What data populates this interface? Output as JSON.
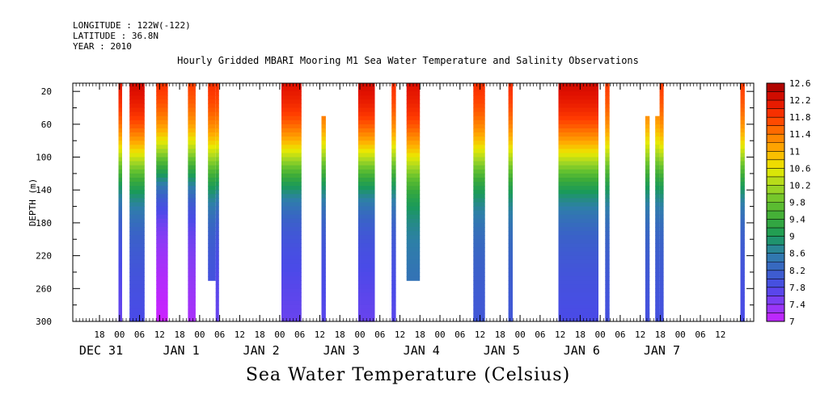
{
  "header": {
    "longitude": "LONGITUDE : 122W(-122)",
    "latitude": "LATITUDE : 36.8N",
    "year": "YEAR : 2010"
  },
  "caption": "Sea Water Temperature (Celsius)",
  "chart_data": {
    "type": "heatmap",
    "title": "Hourly Gridded MBARI Mooring M1 Sea Water Temperature and Salinity Observations",
    "xlabel": "",
    "ylabel": "DEPTH (m)",
    "ylim": [
      300,
      10
    ],
    "xlim_hours_from_dec31_00": [
      -14,
      190
    ],
    "y_ticks": [
      20,
      60,
      100,
      140,
      180,
      220,
      260,
      300
    ],
    "x_hour_ticks": [
      "18",
      "00",
      "06",
      "12",
      "18",
      "00",
      "06",
      "12",
      "18",
      "00",
      "06",
      "12",
      "18",
      "00",
      "06",
      "12",
      "18",
      "00",
      "06",
      "12",
      "18",
      "00",
      "06",
      "12",
      "18",
      "00",
      "06",
      "12",
      "18",
      "00",
      "06",
      "12"
    ],
    "x_day_labels": [
      {
        "text": "DEC 31",
        "hour": -6
      },
      {
        "text": "JAN  1",
        "hour": 18
      },
      {
        "text": "JAN  2",
        "hour": 42
      },
      {
        "text": "JAN  3",
        "hour": 66
      },
      {
        "text": "JAN  4",
        "hour": 90
      },
      {
        "text": "JAN  5",
        "hour": 114
      },
      {
        "text": "JAN  6",
        "hour": 138
      },
      {
        "text": "JAN  7",
        "hour": 162
      }
    ],
    "colorbar": {
      "min": 7,
      "max": 12.6,
      "step": 0.2,
      "labels": [
        "12.6",
        "12.2",
        "11.8",
        "11.4",
        "11",
        "10.6",
        "10.2",
        "9.8",
        "9.4",
        "9",
        "8.6",
        "8.2",
        "7.8",
        "7.4",
        "7"
      ]
    },
    "observation_segments": [
      {
        "start_h": -0.3,
        "end_h": 0.8,
        "top_m": 20,
        "bottom_m": 300,
        "surface_temp": 12.2,
        "bottom_temp": 7.6
      },
      {
        "start_h": 3,
        "end_h": 7.5,
        "top_m": 20,
        "bottom_m": 300,
        "surface_temp": 12.4,
        "bottom_temp": 7.8
      },
      {
        "start_h": 11,
        "end_h": 14.5,
        "top_m": 20,
        "bottom_m": 300,
        "surface_temp": 12.0,
        "bottom_temp": 7.0
      },
      {
        "start_h": 20.5,
        "end_h": 22.8,
        "top_m": 20,
        "bottom_m": 300,
        "surface_temp": 11.9,
        "bottom_temp": 7.2
      },
      {
        "start_h": 26.5,
        "end_h": 28.8,
        "top_m": 20,
        "bottom_m": 250,
        "surface_temp": 12.0,
        "bottom_temp": 7.8
      },
      {
        "start_h": 28.8,
        "end_h": 29.8,
        "top_m": 20,
        "bottom_m": 300,
        "surface_temp": 12.0,
        "bottom_temp": 7.6
      },
      {
        "start_h": 48.5,
        "end_h": 54.5,
        "top_m": 20,
        "bottom_m": 300,
        "surface_temp": 12.3,
        "bottom_temp": 7.6
      },
      {
        "start_h": 60.5,
        "end_h": 61.8,
        "top_m": 60,
        "bottom_m": 300,
        "surface_temp": 11.9,
        "bottom_temp": 7.7
      },
      {
        "start_h": 71.5,
        "end_h": 76.5,
        "top_m": 20,
        "bottom_m": 300,
        "surface_temp": 12.4,
        "bottom_temp": 7.6
      },
      {
        "start_h": 81.5,
        "end_h": 82.8,
        "top_m": 20,
        "bottom_m": 300,
        "surface_temp": 12.0,
        "bottom_temp": 7.7
      },
      {
        "start_h": 86,
        "end_h": 90,
        "top_m": 20,
        "bottom_m": 250,
        "surface_temp": 12.3,
        "bottom_temp": 8.3
      },
      {
        "start_h": 106,
        "end_h": 109.5,
        "top_m": 20,
        "bottom_m": 300,
        "surface_temp": 12.0,
        "bottom_temp": 8.0
      },
      {
        "start_h": 116.5,
        "end_h": 117.8,
        "top_m": 20,
        "bottom_m": 300,
        "surface_temp": 12.0,
        "bottom_temp": 8.0
      },
      {
        "start_h": 131.5,
        "end_h": 143.5,
        "top_m": 20,
        "bottom_m": 300,
        "surface_temp": 12.4,
        "bottom_temp": 7.8
      },
      {
        "start_h": 145.5,
        "end_h": 146.8,
        "top_m": 20,
        "bottom_m": 300,
        "surface_temp": 11.9,
        "bottom_temp": 7.9
      },
      {
        "start_h": 157.5,
        "end_h": 158.8,
        "top_m": 60,
        "bottom_m": 300,
        "surface_temp": 11.7,
        "bottom_temp": 7.9
      },
      {
        "start_h": 160.5,
        "end_h": 161.8,
        "top_m": 60,
        "bottom_m": 300,
        "surface_temp": 11.7,
        "bottom_temp": 7.9
      },
      {
        "start_h": 161.8,
        "end_h": 163,
        "top_m": 20,
        "bottom_m": 300,
        "surface_temp": 11.9,
        "bottom_temp": 7.9
      },
      {
        "start_h": 186,
        "end_h": 187.3,
        "top_m": 20,
        "bottom_m": 300,
        "surface_temp": 11.9,
        "bottom_temp": 7.8
      }
    ]
  }
}
